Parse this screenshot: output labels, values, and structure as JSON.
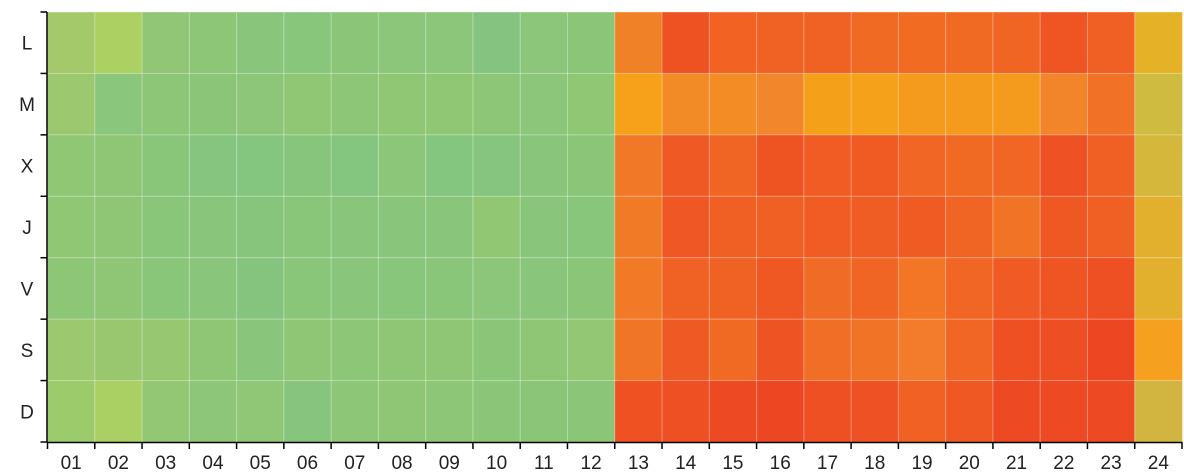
{
  "chart_data": {
    "type": "heatmap",
    "x_categories": [
      "01",
      "02",
      "03",
      "04",
      "05",
      "06",
      "07",
      "08",
      "09",
      "10",
      "11",
      "12",
      "13",
      "14",
      "15",
      "16",
      "17",
      "18",
      "19",
      "20",
      "21",
      "22",
      "23",
      "24"
    ],
    "y_categories": [
      "L",
      "M",
      "X",
      "J",
      "V",
      "S",
      "D"
    ],
    "cell_colors": [
      [
        "#a3c96a",
        "#acd061",
        "#90c675",
        "#8dc677",
        "#89c67b",
        "#88c67c",
        "#8bc678",
        "#8cc67a",
        "#8cc67a",
        "#85c480",
        "#8cc67a",
        "#8bc678",
        "#f18126",
        "#ee5122",
        "#f16223",
        "#f06224",
        "#f06224",
        "#f16a23",
        "#f26b23",
        "#f16a23",
        "#f16524",
        "#ee5523",
        "#f06024",
        "#e5b227"
      ],
      [
        "#9cc86f",
        "#8ac67b",
        "#8dc677",
        "#8bc678",
        "#8dc678",
        "#90c774",
        "#8dc677",
        "#90c774",
        "#8fc775",
        "#8dc677",
        "#8cc67a",
        "#8fc775",
        "#f6a119",
        "#f28a26",
        "#f38c24",
        "#f2862a",
        "#f4a019",
        "#f5a119",
        "#f49b1d",
        "#f49a1d",
        "#f49a1d",
        "#f2852a",
        "#f17126",
        "#cfbb3f"
      ],
      [
        "#90c775",
        "#8fc675",
        "#89c67a",
        "#86c57f",
        "#84c580",
        "#87c57d",
        "#84c580",
        "#8bc679",
        "#84c580",
        "#86c57f",
        "#89c67b",
        "#8bc678",
        "#f17826",
        "#ef5a24",
        "#f06424",
        "#ee5322",
        "#f05c24",
        "#f05b24",
        "#f16624",
        "#f16a23",
        "#f16624",
        "#ee5123",
        "#f06024",
        "#d5b73b"
      ],
      [
        "#90c775",
        "#8fc675",
        "#89c67a",
        "#89c67b",
        "#87c57d",
        "#89c67a",
        "#89c67b",
        "#89c67b",
        "#89c67b",
        "#91c773",
        "#89c67b",
        "#88c67c",
        "#f17a26",
        "#ef5824",
        "#f06024",
        "#f06024",
        "#f05c24",
        "#f05d24",
        "#f05b24",
        "#f16524",
        "#f17426",
        "#ef5723",
        "#f06024",
        "#e2b02c"
      ],
      [
        "#8dc677",
        "#8fc675",
        "#89c67a",
        "#89c67b",
        "#85c47f",
        "#89c67a",
        "#89c67b",
        "#88c67c",
        "#89c67a",
        "#8cc67a",
        "#89c67b",
        "#8bc678",
        "#f27a27",
        "#f06224",
        "#f06224",
        "#ef5723",
        "#f06c26",
        "#f06424",
        "#f37627",
        "#f16624",
        "#f05a24",
        "#ef5423",
        "#ee4f23",
        "#e2b02c"
      ],
      [
        "#9cc86f",
        "#98c76f",
        "#97c771",
        "#8fc675",
        "#89c67b",
        "#8fc675",
        "#8dc677",
        "#8fc675",
        "#8fc675",
        "#8bc678",
        "#8fc675",
        "#94c773",
        "#f17527",
        "#ef5924",
        "#f16a24",
        "#ee5423",
        "#f16e26",
        "#f17326",
        "#f37c2c",
        "#f16624",
        "#ee5023",
        "#ee4e23",
        "#ed4623",
        "#f5a11f"
      ],
      [
        "#9ccb6c",
        "#aacf62",
        "#94c773",
        "#8dc678",
        "#8fc776",
        "#87c57e",
        "#8dc677",
        "#8fc675",
        "#8ec677",
        "#8bc678",
        "#8bc678",
        "#8bc678",
        "#ef5123",
        "#ee4f23",
        "#ed4a23",
        "#ec4623",
        "#ee4f23",
        "#ee5123",
        "#f16124",
        "#ef5723",
        "#ed4a23",
        "#ed4a23",
        "#ed4a23",
        "#d2b541"
      ]
    ],
    "grid": false,
    "legend": "none"
  }
}
